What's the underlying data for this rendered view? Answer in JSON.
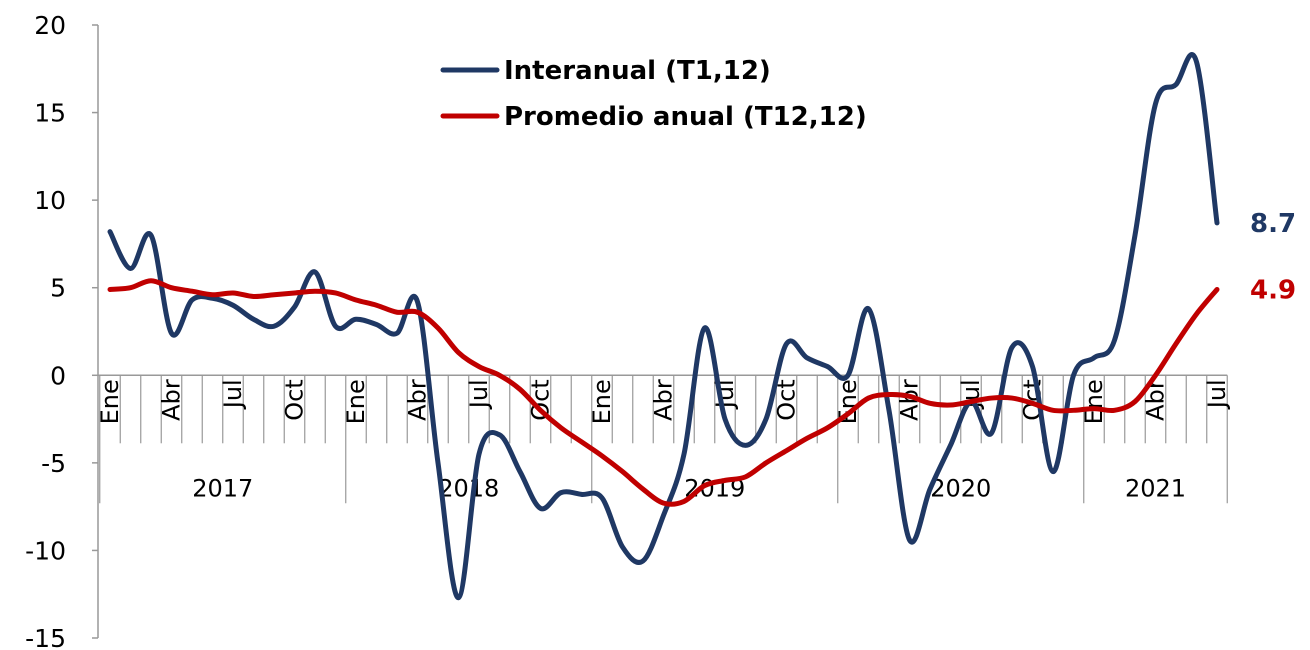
{
  "chart_data": {
    "type": "line",
    "categories": [
      "Ene",
      null,
      null,
      "Abr",
      null,
      null,
      "Jul",
      null,
      null,
      "Oct",
      null,
      null,
      "Ene",
      null,
      null,
      "Abr",
      null,
      null,
      "Jul",
      null,
      null,
      "Oct",
      null,
      null,
      "Ene",
      null,
      null,
      "Abr",
      null,
      null,
      "Jul",
      null,
      null,
      "Oct",
      null,
      null,
      "Ene",
      null,
      null,
      "Abr",
      null,
      null,
      "Jul",
      null,
      null,
      "Oct",
      null,
      null,
      "Ene",
      null,
      null,
      "Abr",
      null,
      null,
      "Jul"
    ],
    "year_groups": [
      "2017",
      "2018",
      "2019",
      "2020",
      "2021"
    ],
    "series": [
      {
        "name": "Interanual (T1,12)",
        "color": "#1f3864",
        "values": [
          8.2,
          6.1,
          8.0,
          2.4,
          4.3,
          4.4,
          4.0,
          3.2,
          2.8,
          3.9,
          5.9,
          2.8,
          3.2,
          2.9,
          2.4,
          4.2,
          -5.0,
          -12.7,
          -4.5,
          -3.4,
          -5.5,
          -7.6,
          -6.7,
          -6.8,
          -7.0,
          -9.8,
          -10.6,
          -8.0,
          -4.5,
          2.7,
          -2.5,
          -4.0,
          -2.5,
          1.8,
          1.0,
          0.5,
          0.0,
          3.8,
          -2.0,
          -9.4,
          -6.5,
          -4.0,
          -1.5,
          -3.3,
          1.6,
          0.5,
          -5.5,
          0.0,
          1.0,
          2.0,
          8.0,
          15.5,
          16.6,
          17.9,
          8.7
        ]
      },
      {
        "name": "Promedio anual (T12,12)",
        "color": "#c00000",
        "values": [
          4.9,
          5.0,
          5.4,
          5.0,
          4.8,
          4.6,
          4.7,
          4.5,
          4.6,
          4.7,
          4.8,
          4.7,
          4.3,
          4.0,
          3.6,
          3.6,
          2.7,
          1.3,
          0.5,
          0.0,
          -0.8,
          -2.0,
          -3.0,
          -3.8,
          -4.6,
          -5.5,
          -6.5,
          -7.3,
          -7.2,
          -6.3,
          -6.0,
          -5.8,
          -5.0,
          -4.3,
          -3.6,
          -3.0,
          -2.2,
          -1.3,
          -1.1,
          -1.2,
          -1.6,
          -1.7,
          -1.5,
          -1.3,
          -1.3,
          -1.6,
          -2.0,
          -2.0,
          -1.9,
          -2.0,
          -1.5,
          0.0,
          1.8,
          3.5,
          4.9
        ]
      }
    ],
    "ylim": [
      -15,
      20
    ],
    "yticks": [
      -15,
      -10,
      -5,
      0,
      5,
      10,
      15,
      20
    ],
    "grid": false,
    "legend": "top"
  }
}
